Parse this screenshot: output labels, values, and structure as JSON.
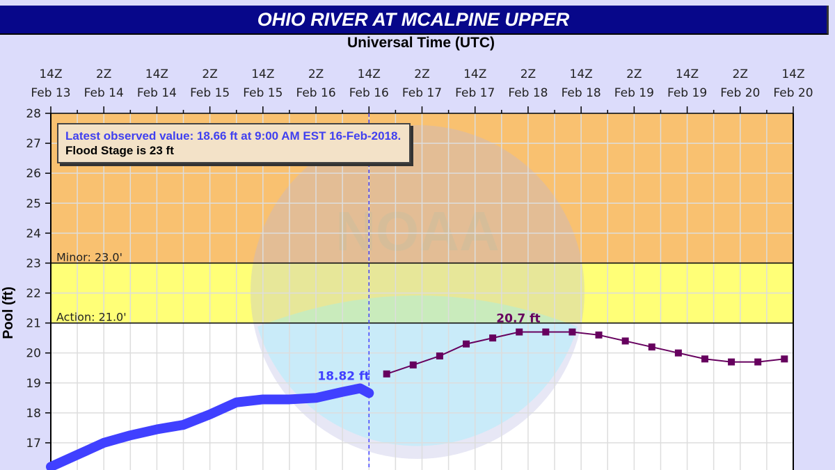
{
  "title": "OHIO RIVER AT MCALPINE UPPER",
  "chart_data": {
    "type": "line",
    "title": "OHIO RIVER AT MCALPINE UPPER",
    "xlabel": "Universal Time (UTC)",
    "ylabel": "Pool (ft)",
    "ylim": [
      16,
      28
    ],
    "xlim": [
      "2018-02-13T14:00Z",
      "2018-02-20T14:00Z"
    ],
    "grid": true,
    "x_tick_labels": [
      [
        "14Z",
        "Feb 13"
      ],
      [
        "2Z",
        "Feb 14"
      ],
      [
        "14Z",
        "Feb 14"
      ],
      [
        "2Z",
        "Feb 15"
      ],
      [
        "14Z",
        "Feb 15"
      ],
      [
        "2Z",
        "Feb 16"
      ],
      [
        "14Z",
        "Feb 16"
      ],
      [
        "2Z",
        "Feb 17"
      ],
      [
        "14Z",
        "Feb 17"
      ],
      [
        "2Z",
        "Feb 18"
      ],
      [
        "14Z",
        "Feb 18"
      ],
      [
        "2Z",
        "Feb 19"
      ],
      [
        "14Z",
        "Feb 19"
      ],
      [
        "2Z",
        "Feb 20"
      ],
      [
        "14Z",
        "Feb 20"
      ]
    ],
    "y_ticks": [
      17,
      18,
      19,
      20,
      21,
      22,
      23,
      24,
      25,
      26,
      27,
      28
    ],
    "bands": [
      {
        "label": "Minor: 23.0'",
        "from": 23,
        "to": 28,
        "color": "#f9c170"
      },
      {
        "label": "Action: 21.0'",
        "from": 21,
        "to": 23,
        "color": "#ffff77"
      }
    ],
    "series": [
      {
        "kind": "observed",
        "color": "#4040ff",
        "x": [
          "2018-02-13T14:00Z",
          "2018-02-13T20:00Z",
          "2018-02-14T02:00Z",
          "2018-02-14T08:00Z",
          "2018-02-14T14:00Z",
          "2018-02-14T20:00Z",
          "2018-02-15T02:00Z",
          "2018-02-15T08:00Z",
          "2018-02-15T14:00Z",
          "2018-02-15T20:00Z",
          "2018-02-16T02:00Z",
          "2018-02-16T08:00Z",
          "2018-02-16T12:00Z",
          "2018-02-16T14:00Z"
        ],
        "y": [
          16.2,
          16.6,
          17.0,
          17.25,
          17.45,
          17.6,
          17.95,
          18.35,
          18.45,
          18.45,
          18.5,
          18.7,
          18.82,
          18.66
        ]
      },
      {
        "kind": "forecast",
        "color": "#66005e",
        "x": [
          "2018-02-16T18:00Z",
          "2018-02-17T00:00Z",
          "2018-02-17T06:00Z",
          "2018-02-17T12:00Z",
          "2018-02-17T18:00Z",
          "2018-02-18T00:00Z",
          "2018-02-18T06:00Z",
          "2018-02-18T12:00Z",
          "2018-02-18T18:00Z",
          "2018-02-19T00:00Z",
          "2018-02-19T06:00Z",
          "2018-02-19T12:00Z",
          "2018-02-19T18:00Z",
          "2018-02-20T00:00Z",
          "2018-02-20T06:00Z",
          "2018-02-20T12:00Z"
        ],
        "y": [
          19.3,
          19.6,
          19.9,
          20.3,
          20.5,
          20.7,
          20.7,
          20.7,
          20.6,
          20.4,
          20.2,
          20.0,
          19.8,
          19.7,
          19.7,
          19.8
        ]
      }
    ],
    "annotations": {
      "observed_peak": "18.82 ft",
      "forecast_peak": "20.7 ft",
      "current_time": "2018-02-16T14:00Z"
    },
    "legend": {
      "observed_text": "Latest observed value: 18.66 ft at 9:00 AM EST 16-Feb-2018.",
      "flood_text": "Flood Stage is 23 ft",
      "placement": "top-left"
    },
    "watermark": "NOAA"
  }
}
